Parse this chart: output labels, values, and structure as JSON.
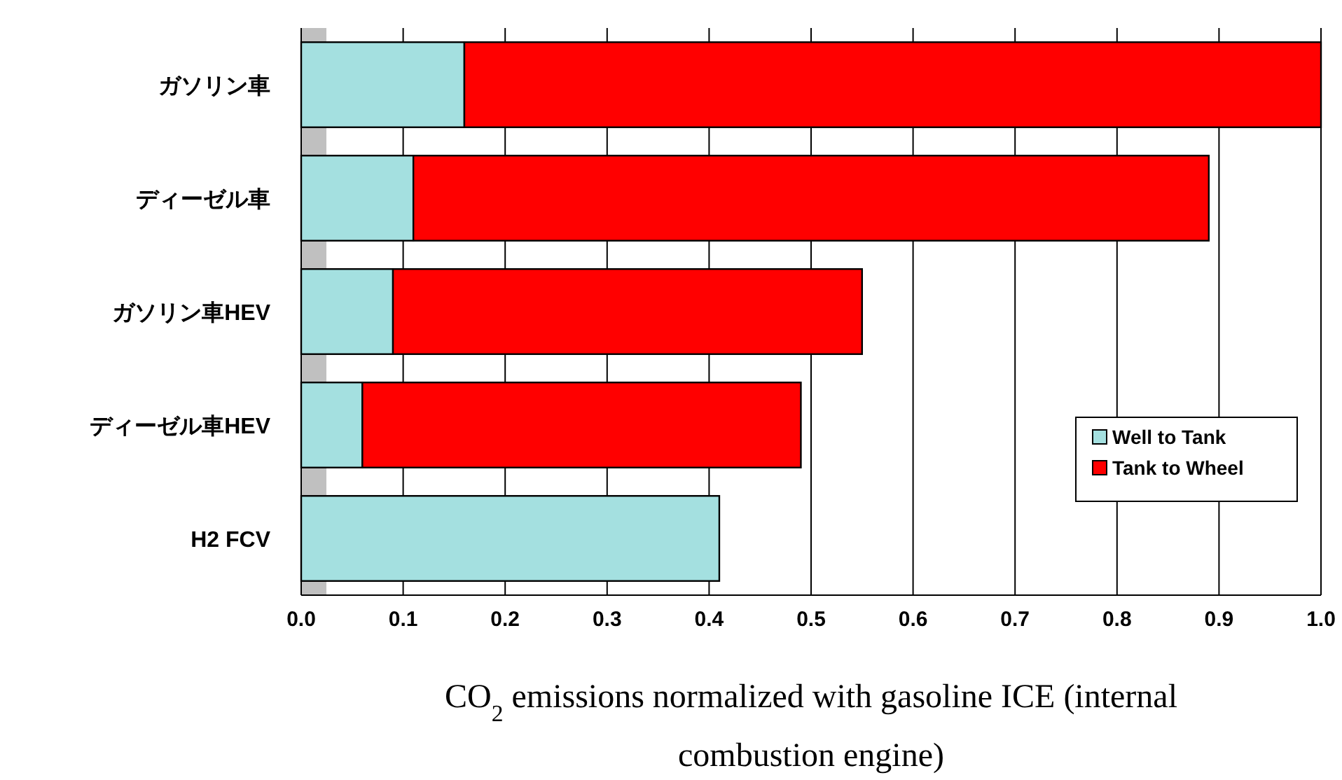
{
  "chart_data": {
    "type": "bar",
    "orientation": "horizontal",
    "stacked": true,
    "categories": [
      "ガソリン車",
      "ディーゼル車",
      "ガソリン車HEV",
      "ディーゼル車HEV",
      "H2 FCV"
    ],
    "series": [
      {
        "name": "Well to Tank",
        "color": "#a4e0e0",
        "values": [
          0.16,
          0.11,
          0.09,
          0.06,
          0.41
        ]
      },
      {
        "name": "Tank to Wheel",
        "color": "#ff0000",
        "values": [
          0.84,
          0.78,
          0.46,
          0.43,
          null
        ]
      }
    ],
    "xlim": [
      0,
      1.0
    ],
    "xticks": [
      {
        "value": 0,
        "label": "0.0"
      },
      0.1,
      0.2,
      0.3,
      0.4,
      0.5,
      0.6,
      0.7,
      0.8,
      0.9,
      {
        "value": 1,
        "label": "1.0"
      }
    ],
    "xlabel": "CO$_{2}$ emissions normalized with gasoline ICE (internal combustion engine)",
    "grid": "x",
    "legend": "bottom right"
  }
}
